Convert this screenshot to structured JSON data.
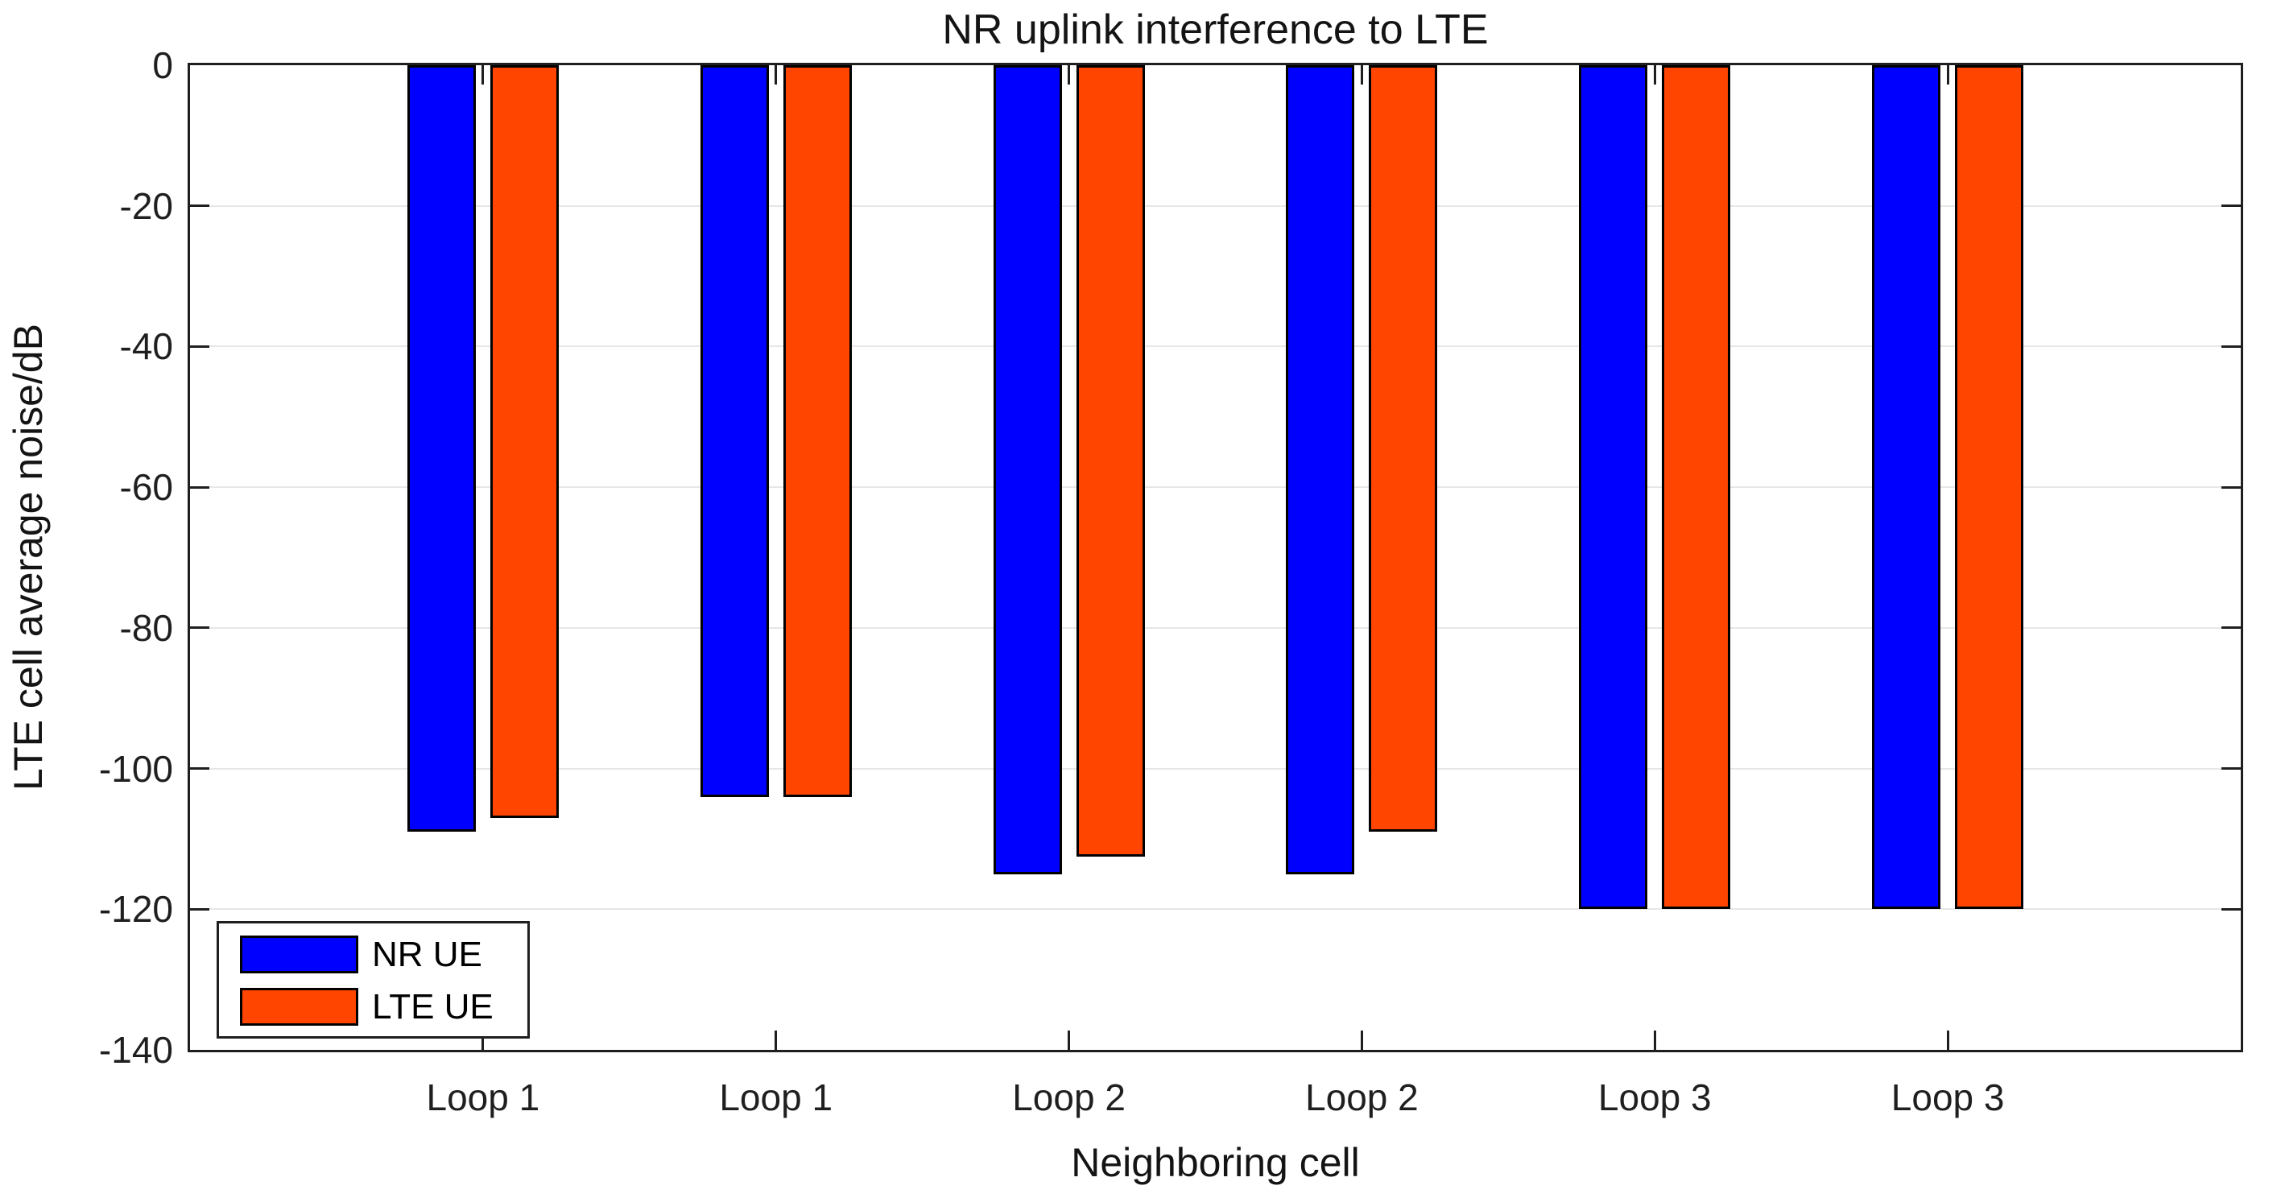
{
  "chart_data": {
    "type": "bar",
    "title": "NR uplink interference to LTE",
    "xlabel": "Neighboring cell",
    "ylabel": "LTE cell average noise/dB",
    "categories": [
      "Loop 1",
      "Loop 1",
      "Loop 2",
      "Loop 2",
      "Loop 3",
      "Loop 3"
    ],
    "series": [
      {
        "name": "NR UE",
        "color": "#0000FF",
        "values": [
          -109,
          -104,
          -115,
          -115,
          -120,
          -120
        ]
      },
      {
        "name": "LTE UE",
        "color": "#FF4500",
        "values": [
          -107,
          -104,
          -112.5,
          -109,
          -120,
          -120
        ]
      }
    ],
    "ylim": [
      -140,
      0
    ],
    "yticks": [
      0,
      -20,
      -40,
      -60,
      -80,
      -100,
      -120,
      -140
    ],
    "ytick_labels": [
      "0",
      "-20",
      "-40",
      "-60",
      "-80",
      "-100",
      "-120",
      "-140"
    ],
    "grid": "horizontal",
    "gridline_color": "#e7e7e7",
    "axis_color": "#1f1f1f",
    "bar_edge_color": "#000000",
    "legend_position": "lower-left"
  }
}
